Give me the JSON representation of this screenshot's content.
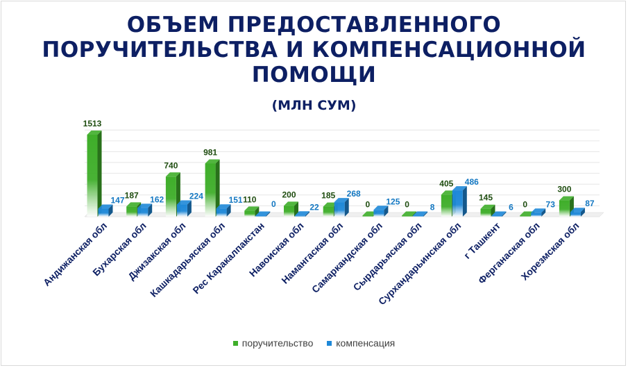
{
  "chart_data": {
    "type": "bar",
    "title_lines": [
      "ОБЪЕМ ПРЕДОСТАВЛЕННОГО",
      "ПОРУЧИТЕЛЬСТВА И КОМПЕНСАЦИОННОЙ",
      "ПОМОЩИ"
    ],
    "subtitle": "(МЛН СУМ)",
    "categories": [
      "Андижанская обл",
      "Бухарская обл",
      "Джизакская обл",
      "Кашкадарьяская обл",
      "Рес Каракалпакстан",
      "Навоиская обл",
      "Намангаская  обл",
      "Самаркандская  обл",
      "Сырдарьяская  обл",
      "Сурхандарьинская  обл",
      "г Ташкент",
      "Ферганаская  обл",
      "Хорезмская  обл"
    ],
    "series": [
      {
        "name": "поручительство",
        "color": "#3fae2a",
        "label_color": "#1f4d10",
        "values": [
          1513,
          187,
          740,
          981,
          110,
          200,
          185,
          0,
          0,
          405,
          145,
          0,
          300
        ]
      },
      {
        "name": "компенсация",
        "color": "#1e88d8",
        "label_color": "#1478c2",
        "values": [
          147,
          162,
          224,
          151,
          0,
          22,
          268,
          125,
          8,
          486,
          6,
          73,
          87
        ]
      }
    ],
    "ylim": [
      0,
      1600
    ],
    "grid": true,
    "legend_position": "bottom",
    "three_d": true
  }
}
